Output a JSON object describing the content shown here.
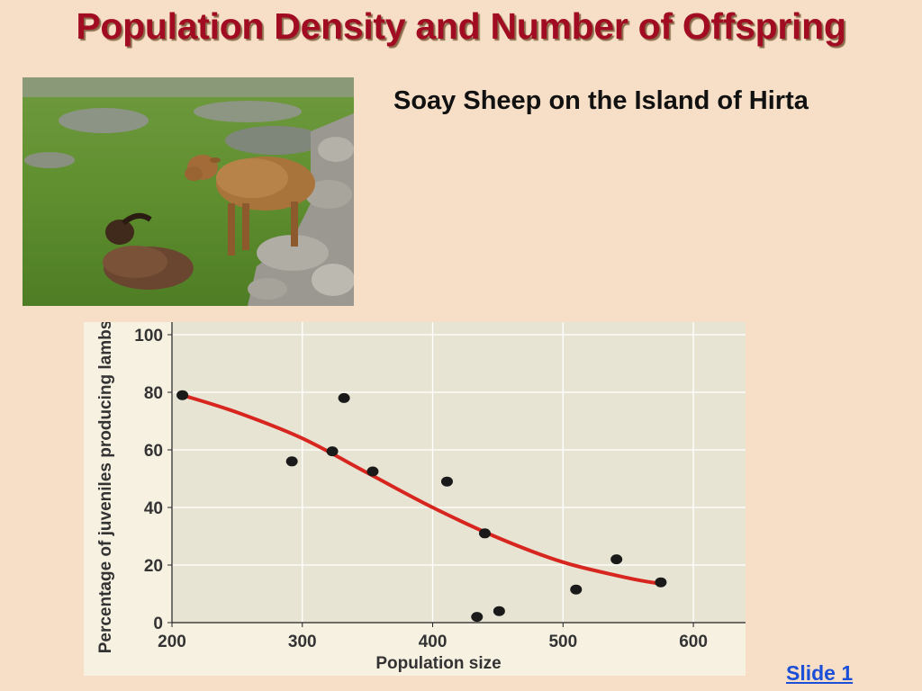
{
  "slide": {
    "title": "Population Density and Number of Offspring",
    "caption": "Soay Sheep on the Island of Hirta",
    "link_label": "Slide 1"
  },
  "photo": {
    "description_icon": "sheep-photo"
  },
  "colors": {
    "title": "#a10c23",
    "background": "#f6dfc6",
    "plot_bg": "#e8e4d3",
    "trend": "#d7261f",
    "points": "#1a1a1a",
    "link": "#1c4fd8"
  },
  "chart_data": {
    "type": "scatter",
    "xlabel": "Population size",
    "ylabel": "Percentage of juveniles producing lambs",
    "xlim": [
      200,
      640
    ],
    "ylim": [
      0,
      100
    ],
    "xticks": [
      200,
      300,
      400,
      500,
      600
    ],
    "yticks": [
      0,
      20,
      40,
      60,
      80,
      100
    ],
    "grid": true,
    "points": [
      {
        "x": 208,
        "y": 79
      },
      {
        "x": 292,
        "y": 56
      },
      {
        "x": 323,
        "y": 59.5
      },
      {
        "x": 332,
        "y": 78
      },
      {
        "x": 354,
        "y": 52.5
      },
      {
        "x": 411,
        "y": 49
      },
      {
        "x": 434,
        "y": 2
      },
      {
        "x": 440,
        "y": 31
      },
      {
        "x": 451,
        "y": 4
      },
      {
        "x": 510,
        "y": 11.5
      },
      {
        "x": 541,
        "y": 22
      },
      {
        "x": 575,
        "y": 14
      }
    ],
    "trend": {
      "x": [
        208,
        250,
        300,
        350,
        400,
        450,
        500,
        550,
        575
      ],
      "y": [
        79,
        73,
        64,
        52,
        40,
        29.5,
        21,
        15.5,
        13.5
      ]
    }
  }
}
